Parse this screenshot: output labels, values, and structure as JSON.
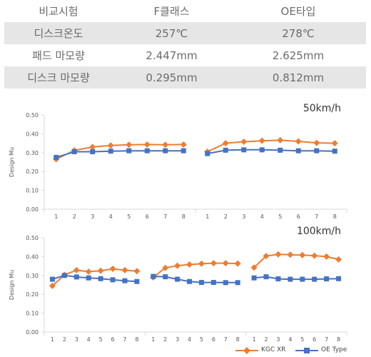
{
  "table": {
    "header": [
      "비교시험",
      "F클래스",
      "OE타입"
    ],
    "rows": [
      [
        "디스크온도",
        "257℃",
        "278℃"
      ],
      [
        "패드 마모량",
        "2.447mm",
        "2.625mm"
      ],
      [
        "디스크 마모량",
        "0.295mm",
        "0.812mm"
      ]
    ]
  },
  "colors": {
    "kgc": "#ed7d31",
    "oe": "#4472c4",
    "axis": "#d9d9d9",
    "text": "#595959"
  },
  "legend": {
    "kgc_label": "KGC XR",
    "oe_label": "OE Type"
  },
  "chart_data": [
    {
      "type": "line",
      "title": "50km/h",
      "ylabel": "Design Mu",
      "ylim": [
        0,
        0.5
      ],
      "yticks": [
        "0.00",
        "0.10",
        "0.20",
        "0.30",
        "0.40",
        "0.50"
      ],
      "grid": false,
      "legend": "bottom-right",
      "groups": [
        {
          "x": [
            "1",
            "2",
            "3",
            "4",
            "5",
            "6",
            "7",
            "8"
          ],
          "series": [
            {
              "name": "KGC XR",
              "values": [
                0.265,
                0.312,
                0.33,
                0.338,
                0.342,
                0.343,
                0.342,
                0.343
              ]
            },
            {
              "name": "OE Type",
              "values": [
                0.275,
                0.305,
                0.305,
                0.308,
                0.31,
                0.31,
                0.31,
                0.31
              ]
            }
          ]
        },
        {
          "x": [
            "1",
            "2",
            "3",
            "4",
            "5",
            "6",
            "7",
            "8"
          ],
          "series": [
            {
              "name": "KGC XR",
              "values": [
                0.305,
                0.35,
                0.358,
                0.363,
                0.366,
                0.36,
                0.352,
                0.35
              ]
            },
            {
              "name": "OE Type",
              "values": [
                0.295,
                0.313,
                0.315,
                0.315,
                0.313,
                0.31,
                0.31,
                0.308
              ]
            }
          ]
        }
      ]
    },
    {
      "type": "line",
      "title": "100km/h",
      "ylabel": "Design Mu",
      "ylim": [
        0,
        0.5
      ],
      "yticks": [
        "0.00",
        "0.10",
        "0.20",
        "0.30",
        "0.40",
        "0.50"
      ],
      "grid": false,
      "legend": "bottom-right",
      "groups": [
        {
          "x": [
            "1",
            "2",
            "3",
            "4",
            "5",
            "6",
            "7",
            "8"
          ],
          "series": [
            {
              "name": "KGC XR",
              "values": [
                0.245,
                0.303,
                0.328,
                0.32,
                0.325,
                0.335,
                0.328,
                0.323
              ]
            },
            {
              "name": "OE Type",
              "values": [
                0.28,
                0.3,
                0.292,
                0.287,
                0.283,
                0.277,
                0.272,
                0.268
              ]
            }
          ]
        },
        {
          "x": [
            "1",
            "2",
            "3",
            "4",
            "5",
            "6",
            "7",
            "8"
          ],
          "series": [
            {
              "name": "KGC XR",
              "values": [
                0.29,
                0.34,
                0.352,
                0.358,
                0.362,
                0.365,
                0.365,
                0.363
              ]
            },
            {
              "name": "OE Type",
              "values": [
                0.295,
                0.293,
                0.28,
                0.268,
                0.263,
                0.263,
                0.262,
                0.262
              ]
            }
          ]
        },
        {
          "x": [
            "1",
            "2",
            "3",
            "4",
            "5",
            "6",
            "7",
            "8"
          ],
          "series": [
            {
              "name": "KGC XR",
              "values": [
                0.342,
                0.403,
                0.412,
                0.41,
                0.408,
                0.405,
                0.4,
                0.385
              ]
            },
            {
              "name": "OE Type",
              "values": [
                0.287,
                0.293,
                0.282,
                0.28,
                0.28,
                0.28,
                0.282,
                0.283
              ]
            }
          ]
        }
      ]
    }
  ]
}
